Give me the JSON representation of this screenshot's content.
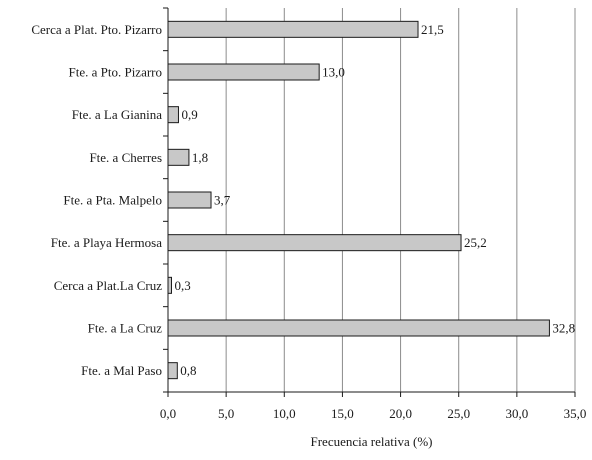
{
  "chart_data": {
    "type": "bar",
    "orientation": "horizontal",
    "categories": [
      "Cerca a Plat. Pto. Pizarro",
      "Fte. a Pto. Pizarro",
      "Fte. a La Gianina",
      "Fte. a Cherres",
      "Fte. a Pta. Malpelo",
      "Fte. a Playa Hermosa",
      "Cerca a Plat.La Cruz",
      "Fte. a La Cruz",
      "Fte. a Mal Paso"
    ],
    "values": [
      21.5,
      13.0,
      0.9,
      1.8,
      3.7,
      25.2,
      0.3,
      32.8,
      0.8
    ],
    "value_labels": [
      "21,5",
      "13,0",
      "0,9",
      "1,8",
      "3,7",
      "25,2",
      "0,3",
      "32,8",
      "0,8"
    ],
    "title": "",
    "xlabel": "Frecuencia relativa (%)",
    "ylabel": "",
    "xlim": [
      0,
      35
    ],
    "x_ticks": [
      0,
      5,
      10,
      15,
      20,
      25,
      30,
      35
    ],
    "x_tick_labels": [
      "0,0",
      "5,0",
      "10,0",
      "15,0",
      "20,0",
      "25,0",
      "30,0",
      "35,0"
    ],
    "grid": "vertical",
    "legend": "none",
    "colors": {
      "bar_fill": "#c8c8c8",
      "bar_stroke": "#1a1a1a",
      "grid": "#8c8c8c"
    }
  }
}
